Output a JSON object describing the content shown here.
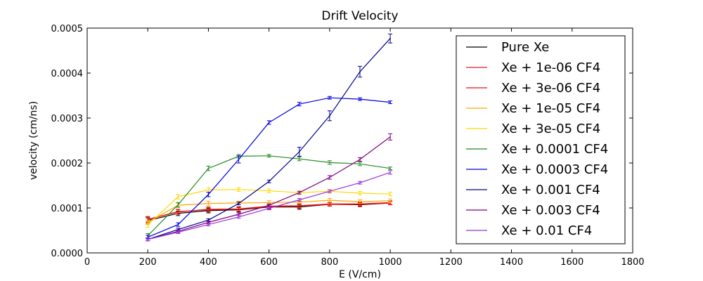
{
  "chart_data": {
    "type": "line",
    "title": "Drift Velocity",
    "xlabel": "E (V/cm)",
    "ylabel": "velocity (cm/ns)",
    "xlim": [
      0,
      1800
    ],
    "ylim": [
      0,
      0.0005
    ],
    "x_ticks": [
      "0",
      "200",
      "400",
      "600",
      "800",
      "1000",
      "1200",
      "1400",
      "1600",
      "1800"
    ],
    "y_ticks": [
      "0.0000",
      "0.0001",
      "0.0002",
      "0.0003",
      "0.0004",
      "0.0005"
    ],
    "grid": false,
    "legend_position": "top-right",
    "x": [
      200,
      300,
      400,
      500,
      600,
      700,
      800,
      900,
      1000
    ],
    "series": [
      {
        "name": "Pure Xe",
        "color": "#000000",
        "values": [
          7.2e-05,
          8.8e-05,
          9.4e-05,
          9.6e-05,
          0.000102,
          0.000102,
          0.000108,
          0.000107,
          0.000111
        ],
        "errors": [
          6e-06,
          5e-06,
          5e-06,
          5e-06,
          5e-06,
          5e-06,
          4e-06,
          4e-06,
          4e-06
        ]
      },
      {
        "name": "Xe + 1e-06 CF4",
        "color": "#dd2222",
        "values": [
          7.5e-05,
          9.1e-05,
          9.7e-05,
          9.8e-05,
          0.000104,
          0.000105,
          0.000109,
          0.000109,
          0.000112
        ],
        "errors": [
          6e-06,
          5e-06,
          5e-06,
          5e-06,
          5e-06,
          5e-06,
          4e-06,
          4e-06,
          4e-06
        ]
      },
      {
        "name": "Xe + 3e-06 CF4",
        "color": "#ee1111",
        "values": [
          7.4e-05,
          9.2e-05,
          9.6e-05,
          9.7e-05,
          0.000103,
          0.000104,
          0.000108,
          0.000108,
          0.000111
        ],
        "errors": [
          6e-06,
          5e-06,
          5e-06,
          5e-06,
          5e-06,
          5e-06,
          4e-06,
          4e-06,
          4e-06
        ]
      },
      {
        "name": "Xe + 1e-05 CF4",
        "color": "#ffa500",
        "values": [
          6.8e-05,
          0.000106,
          0.00011,
          0.000111,
          0.000112,
          0.000113,
          0.000117,
          0.000114,
          0.000116
        ],
        "errors": [
          5e-06,
          5e-06,
          5e-06,
          4e-06,
          4e-06,
          4e-06,
          4e-06,
          4e-06,
          4e-06
        ]
      },
      {
        "name": "Xe + 3e-05 CF4",
        "color": "#ffd700",
        "values": [
          6.2e-05,
          0.000125,
          0.00014,
          0.000141,
          0.000138,
          0.000134,
          0.000137,
          0.000133,
          0.000131
        ],
        "errors": [
          5e-06,
          5e-06,
          5e-06,
          4e-06,
          4e-06,
          4e-06,
          4e-06,
          4e-06,
          4e-06
        ]
      },
      {
        "name": "Xe + 0.0001 CF4",
        "color": "#228b22",
        "values": [
          3.8e-05,
          0.000107,
          0.000188,
          0.000215,
          0.000216,
          0.000209,
          0.000201,
          0.000198,
          0.000188
        ],
        "errors": [
          5e-06,
          5e-06,
          5e-06,
          4e-06,
          3e-06,
          4e-06,
          4e-06,
          4e-06,
          3e-06
        ]
      },
      {
        "name": "Xe + 0.0003 CF4",
        "color": "#0000dd",
        "values": [
          3.5e-05,
          6.3e-05,
          0.00013,
          0.000208,
          0.00029,
          0.000331,
          0.000345,
          0.000342,
          0.000335
        ],
        "errors": [
          4e-06,
          4e-06,
          5e-06,
          8e-06,
          4e-06,
          4e-06,
          3e-06,
          3e-06,
          3e-06
        ]
      },
      {
        "name": "Xe + 0.001 CF4",
        "color": "#00008b",
        "values": [
          3e-05,
          5.2e-05,
          7.3e-05,
          0.00011,
          0.000159,
          0.000225,
          0.000305,
          0.000403,
          0.000477
        ],
        "errors": [
          3e-06,
          3e-06,
          3e-06,
          3e-06,
          3e-06,
          1e-05,
          1.1e-05,
          1.2e-05,
          1e-05
        ]
      },
      {
        "name": "Xe + 0.003 CF4",
        "color": "#800080",
        "values": [
          3e-05,
          4.8e-05,
          6.8e-05,
          8.6e-05,
          0.000106,
          0.000134,
          0.000168,
          0.000208,
          0.000258
        ],
        "errors": [
          3e-06,
          3e-06,
          3e-06,
          3e-06,
          3e-06,
          3e-06,
          4e-06,
          4e-06,
          7e-06
        ]
      },
      {
        "name": "Xe + 0.01 CF4",
        "color": "#9933dd",
        "values": [
          3e-05,
          4.6e-05,
          6.3e-05,
          8e-05,
          9.9e-05,
          0.000118,
          0.000137,
          0.000156,
          0.000179
        ],
        "errors": [
          3e-06,
          3e-06,
          3e-06,
          3e-06,
          3e-06,
          3e-06,
          3e-06,
          3e-06,
          4e-06
        ]
      }
    ]
  }
}
